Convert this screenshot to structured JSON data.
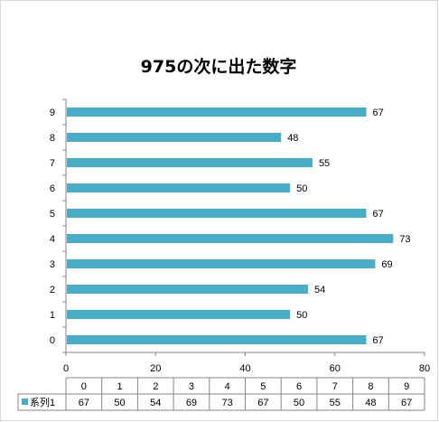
{
  "chart_data": {
    "type": "bar",
    "orientation": "horizontal",
    "title": "975の次に出た数字",
    "categories": [
      "0",
      "1",
      "2",
      "3",
      "4",
      "5",
      "6",
      "7",
      "8",
      "9"
    ],
    "series": [
      {
        "name": "系列1",
        "values": [
          67,
          50,
          54,
          69,
          73,
          67,
          50,
          55,
          48,
          67
        ],
        "color": "#4bacc6"
      }
    ],
    "xlim": [
      0,
      80
    ],
    "xticks": [
      "0",
      "20",
      "40",
      "60",
      "80"
    ],
    "grid": false,
    "data_table": true
  }
}
